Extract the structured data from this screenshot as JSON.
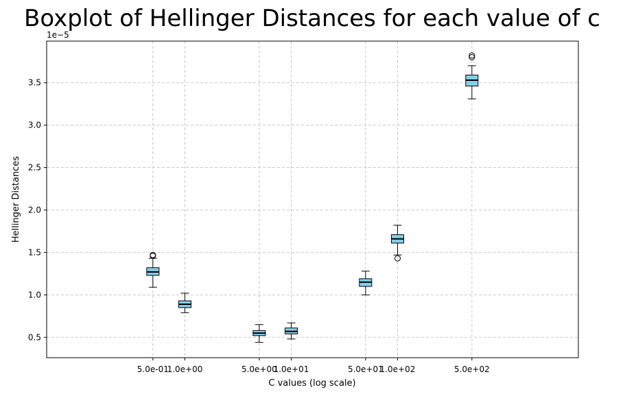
{
  "chart_data": {
    "type": "boxplot",
    "title": "Boxplot of Hellinger Distances for each value of c",
    "xlabel": "C values (log scale)",
    "ylabel": "Hellinger Distances",
    "y_offset_label": "1e−5",
    "x_scale": "log",
    "grid": true,
    "grid_style": "dashed",
    "box_color": "#87CEEB",
    "median_color": "#000000",
    "categories": [
      "5.0e-01",
      "1.0e+00",
      "5.0e+00",
      "1.0e+01",
      "5.0e+01",
      "1.0e+02",
      "5.0e+02"
    ],
    "boxes": [
      {
        "c": 0.5,
        "label": "5.0e-01",
        "whisker_low": 1.09,
        "q1": 1.23,
        "median": 1.27,
        "q3": 1.32,
        "whisker_high": 1.43,
        "outliers": [
          1.46,
          1.47
        ]
      },
      {
        "c": 1,
        "label": "1.0e+00",
        "whisker_low": 0.79,
        "q1": 0.85,
        "median": 0.89,
        "q3": 0.93,
        "whisker_high": 1.02,
        "outliers": []
      },
      {
        "c": 5,
        "label": "5.0e+00",
        "whisker_low": 0.44,
        "q1": 0.52,
        "median": 0.55,
        "q3": 0.58,
        "whisker_high": 0.65,
        "outliers": []
      },
      {
        "c": 10,
        "label": "1.0e+01",
        "whisker_low": 0.48,
        "q1": 0.54,
        "median": 0.57,
        "q3": 0.61,
        "whisker_high": 0.67,
        "outliers": []
      },
      {
        "c": 50,
        "label": "5.0e+01",
        "whisker_low": 1.0,
        "q1": 1.1,
        "median": 1.15,
        "q3": 1.19,
        "whisker_high": 1.28,
        "outliers": []
      },
      {
        "c": 100,
        "label": "1.0e+02",
        "whisker_low": 1.47,
        "q1": 1.61,
        "median": 1.66,
        "q3": 1.71,
        "whisker_high": 1.82,
        "outliers": [
          1.43
        ]
      },
      {
        "c": 500,
        "label": "5.0e+02",
        "whisker_low": 3.31,
        "q1": 3.46,
        "median": 3.53,
        "q3": 3.59,
        "whisker_high": 3.7,
        "outliers": [
          3.8,
          3.82
        ]
      }
    ],
    "yticks": [
      "0.5",
      "1.0",
      "1.5",
      "2.0",
      "2.5",
      "3.0",
      "3.5"
    ],
    "ytick_values": [
      0.5,
      1.0,
      1.5,
      2.0,
      2.5,
      3.0,
      3.5
    ],
    "ylim": [
      0.26,
      3.99
    ],
    "xlim_log10": [
      -1.3,
      3.7
    ]
  }
}
